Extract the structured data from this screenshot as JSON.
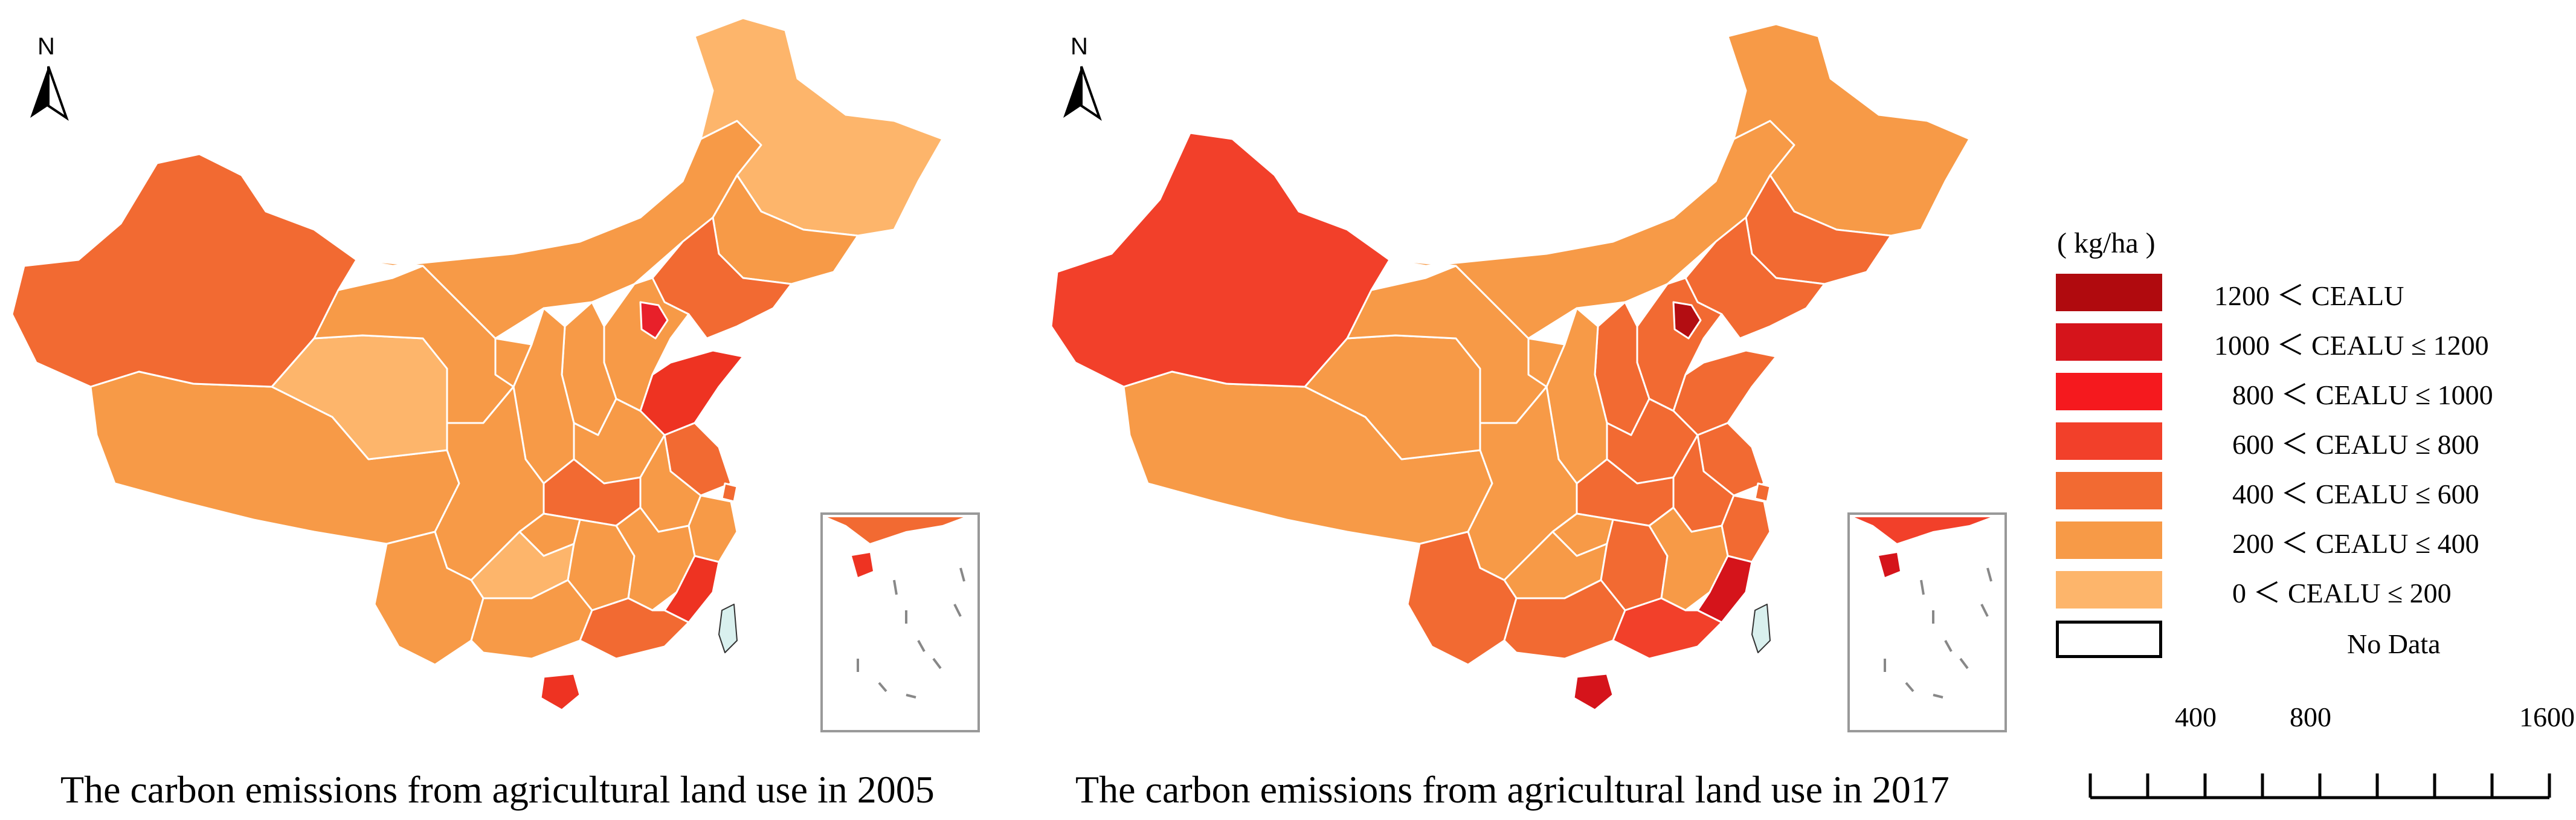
{
  "maps": [
    {
      "title": "The carbon emissions from agricultural land use in 2005",
      "north_label": "N",
      "regions": {
        "xinjiang": "#f26a32",
        "tibet": "#f79a47",
        "qinghai": "#fdb56b",
        "gansu": "#f79a47",
        "inner_mongolia": "#f79a47",
        "heilongjiang": "#fdb56b",
        "jilin": "#f79a47",
        "liaoning": "#f26a32",
        "beijing_tianjin": "#e8202a",
        "hebei": "#f79a47",
        "shandong": "#ee3322",
        "shanxi": "#f79a47",
        "shaanxi": "#f79a47",
        "ningxia": "#f79a47",
        "henan": "#f79a47",
        "jiangsu": "#f26a32",
        "anhui": "#f79a47",
        "shanghai": "#f26a32",
        "zhejiang": "#f79a47",
        "hubei": "#f26a32",
        "sichuan": "#f79a47",
        "chongqing": "#f79a47",
        "guizhou": "#fdb56b",
        "hunan": "#f79a47",
        "jiangxi": "#f79a47",
        "fujian": "#ee3322",
        "yunnan": "#f79a47",
        "guangxi": "#f79a47",
        "guangdong": "#f26a32",
        "hainan": "#ee3322",
        "taiwan": "#d9f0ee"
      }
    },
    {
      "title": "The carbon emissions from agricultural land use in 2017",
      "north_label": "N",
      "regions": {
        "xinjiang": "#f2402a",
        "tibet": "#f79a47",
        "qinghai": "#f79a47",
        "gansu": "#f79a47",
        "inner_mongolia": "#f79a47",
        "heilongjiang": "#f79a47",
        "jilin": "#f26a32",
        "liaoning": "#f26a32",
        "beijing_tianjin": "#b30d12",
        "hebei": "#f26a32",
        "shandong": "#f26a32",
        "shanxi": "#f26a32",
        "shaanxi": "#f79a47",
        "ningxia": "#f79a47",
        "henan": "#f26a32",
        "jiangsu": "#f26a32",
        "anhui": "#f26a32",
        "shanghai": "#f26a32",
        "zhejiang": "#f26a32",
        "hubei": "#f26a32",
        "sichuan": "#f79a47",
        "chongqing": "#f79a47",
        "guizhou": "#f79a47",
        "hunan": "#f26a32",
        "jiangxi": "#f79a47",
        "fujian": "#d5141b",
        "yunnan": "#f26a32",
        "guangxi": "#f26a32",
        "guangdong": "#f2402a",
        "hainan": "#d5141b",
        "taiwan": "#d9f0ee"
      }
    }
  ],
  "legend": {
    "unit": "( kg/ha )",
    "items": [
      {
        "label": "1200 ＜ CEALU",
        "color": "#b00a0e"
      },
      {
        "label": "1000 ＜ CEALU ≤ 1200",
        "color": "#d5141b"
      },
      {
        "label": "800 ＜ CEALU ≤ 1000",
        "color": "#f5191e"
      },
      {
        "label": "600 ＜ CEALU ≤ 800",
        "color": "#f2402a"
      },
      {
        "label": "400 ＜ CEALU ≤ 600",
        "color": "#f26a32"
      },
      {
        "label": "200 ＜ CEALU ≤ 400",
        "color": "#f79a47"
      },
      {
        "label": "0 ＜ CEALU ≤ 200",
        "color": "#fdb56b"
      },
      {
        "label": "No Data",
        "color": "#ffffff"
      }
    ]
  },
  "scale_bar": {
    "labels": [
      "400",
      "800",
      "1600 Km"
    ],
    "distances_km": [
      400,
      800,
      1600
    ],
    "max_km": 1600
  }
}
